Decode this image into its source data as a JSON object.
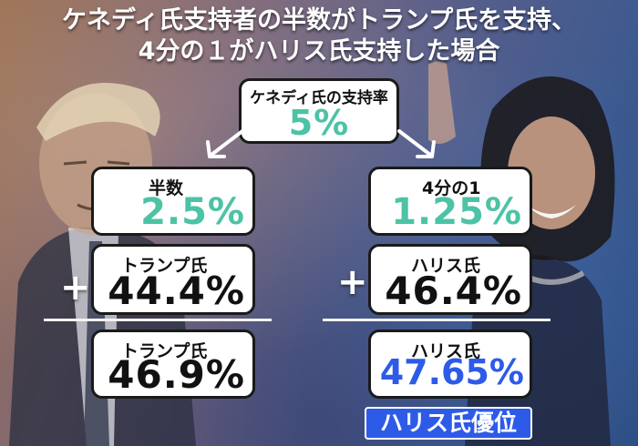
{
  "title": {
    "line1": "ケネディ氏支持者の半数がトランプ氏を支持、",
    "line2": "4分の１がハリス氏支持した場合"
  },
  "top_box": {
    "label": "ケネディ氏の支持率",
    "value": "5%"
  },
  "left": {
    "half": {
      "label": "半数",
      "value": "2.5%"
    },
    "base": {
      "label": "トランプ氏",
      "value": "44.4%"
    },
    "total": {
      "label": "トランプ氏",
      "value": "46.9%"
    },
    "plus": "+"
  },
  "right": {
    "quarter": {
      "label": "4分の1",
      "value": "1.25%"
    },
    "base": {
      "label": "ハリス氏",
      "value": "46.4%"
    },
    "total": {
      "label": "ハリス氏",
      "value": "47.65%"
    },
    "plus": "+"
  },
  "badge": "ハリス氏優位",
  "colors": {
    "teal": "#4cc3a5",
    "blue": "#2d5be8"
  }
}
